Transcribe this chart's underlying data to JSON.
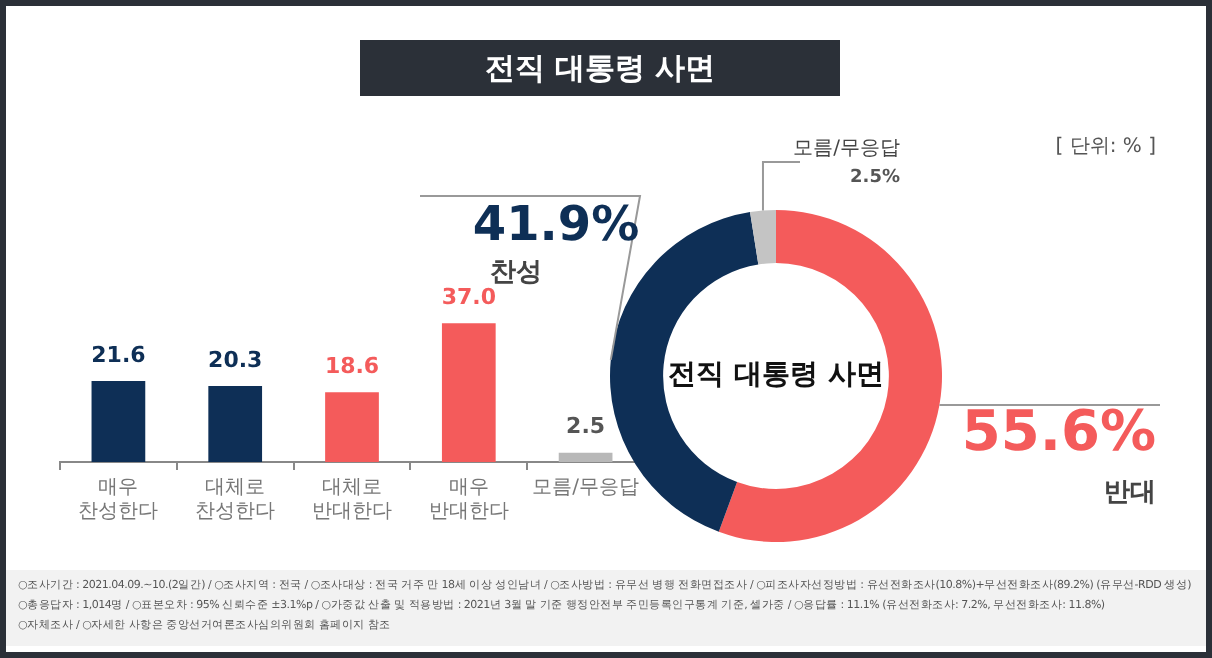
{
  "chart_data": [
    {
      "type": "bar",
      "title": "전직 대통령 사면",
      "categories": [
        "매우 찬성한다",
        "대체로 찬성한다",
        "대체로 반대한다",
        "매우 반대한다",
        "모름/무응답"
      ],
      "values": [
        21.6,
        20.3,
        18.6,
        37.0,
        2.5
      ],
      "colors": [
        "#0e2f56",
        "#0e2f56",
        "#f45b5b",
        "#f45b5b",
        "#b8b8b8"
      ],
      "value_labels": [
        "21.6",
        "20.3",
        "18.6",
        "37.0",
        "2.5"
      ],
      "tick_labels": "x",
      "grid": false,
      "legend": false,
      "annotations": [
        "[ 단위: % ]",
        "○조사기간 : 2021.04.09.~10.(2일간) / ○조사지역 : 전국 / ○조사대상 : 전국 거주 만 18세 이상 성인남녀 / ○조사방법 : 유무선 병행 전화면접조사 / ○피조사자선정방법 : 유선전화조사(10.8%)+무선전화조사(89.2%) (유무선-RDD 생성)",
        "○총응답자 : 1,014명 / ○표본오차 : 95% 신뢰수준 ±3.1%p / ○가중값 산출 및 적용방법 : 2021년 3월 말 기준 행정안전부 주민등록인구통계 기준, 셀가중 / ○응답률 : 11.1% (유선전화조사: 7.2%, 무선전화조사: 11.8%)",
        "○자체조사 / ○자세한 사항은 중앙선거여론조사심의위원회 홈페이지 참조"
      ]
    },
    {
      "type": "donut",
      "title": "전직 대통령 사면",
      "categories": [
        "반대",
        "찬성",
        "모름/무응답"
      ],
      "values": [
        55.6,
        41.9,
        2.5
      ],
      "colors": [
        "#f45b5b",
        "#0e2f56",
        "#c4c4c4"
      ],
      "value_labels": [
        "55.6%",
        "41.9%",
        "2.5%"
      ],
      "legend": false
    }
  ]
}
